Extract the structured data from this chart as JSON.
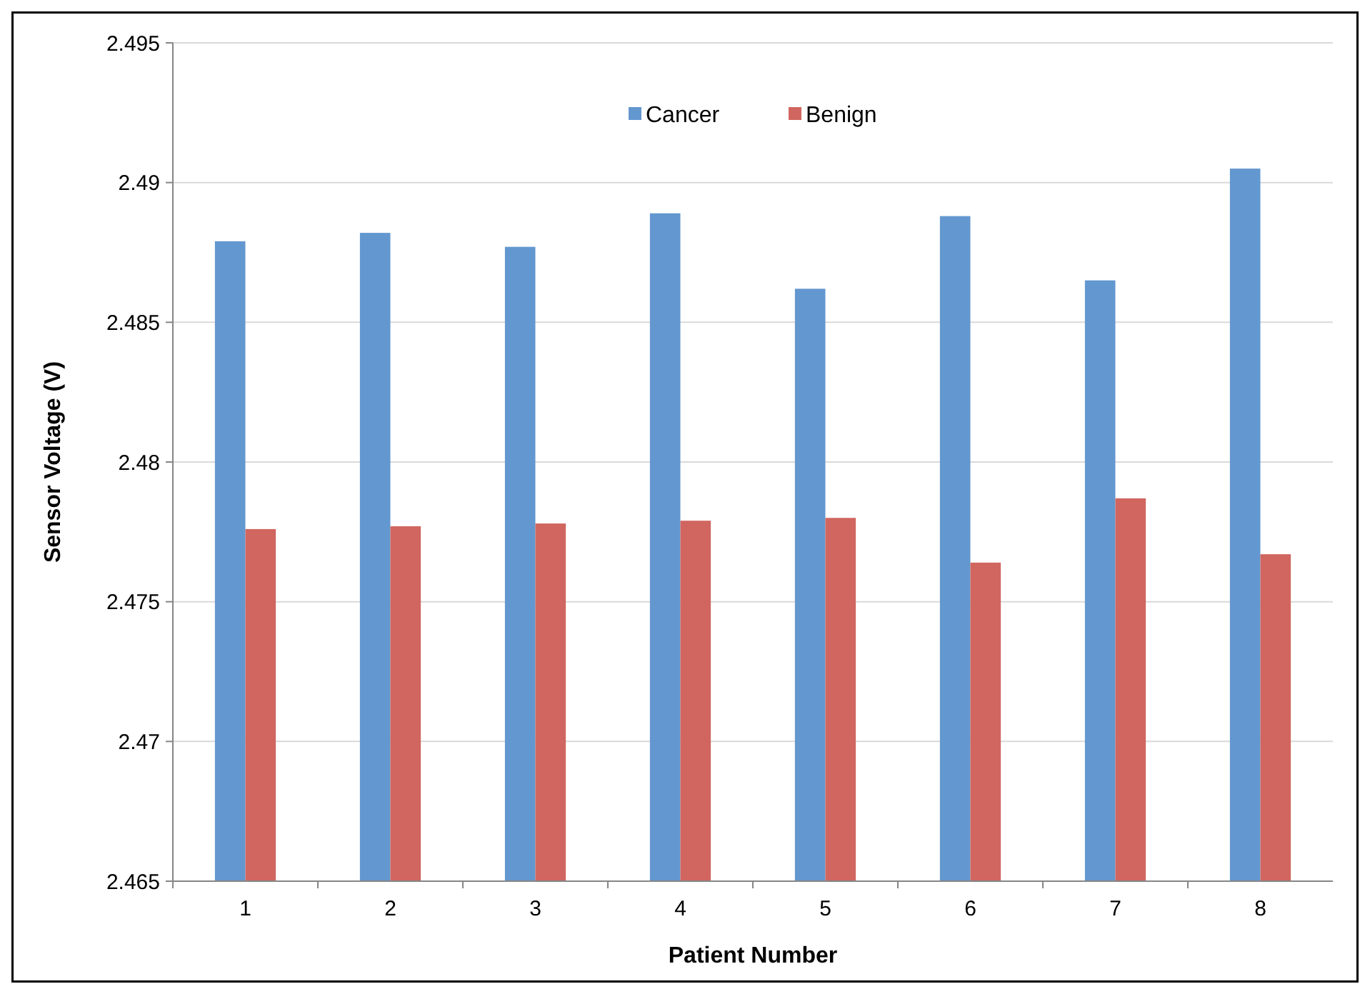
{
  "chart_data": {
    "type": "bar",
    "xlabel": "Patient Number",
    "ylabel": "Sensor Voltage (V)",
    "categories": [
      "1",
      "2",
      "3",
      "4",
      "5",
      "6",
      "7",
      "8"
    ],
    "series": [
      {
        "name": "Cancer",
        "color": "#6397cf",
        "values": [
          2.4879,
          2.4882,
          2.4877,
          2.4889,
          2.4862,
          2.4888,
          2.4865,
          2.4905
        ]
      },
      {
        "name": "Benign",
        "color": "#d0665f",
        "values": [
          2.4776,
          2.4777,
          2.4778,
          2.4779,
          2.478,
          2.4764,
          2.4787,
          2.4767
        ]
      }
    ],
    "ylim": [
      2.465,
      2.495
    ],
    "yticks": [
      2.465,
      2.47,
      2.475,
      2.48,
      2.485,
      2.49,
      2.495
    ],
    "grid": "y",
    "legend": "top"
  }
}
